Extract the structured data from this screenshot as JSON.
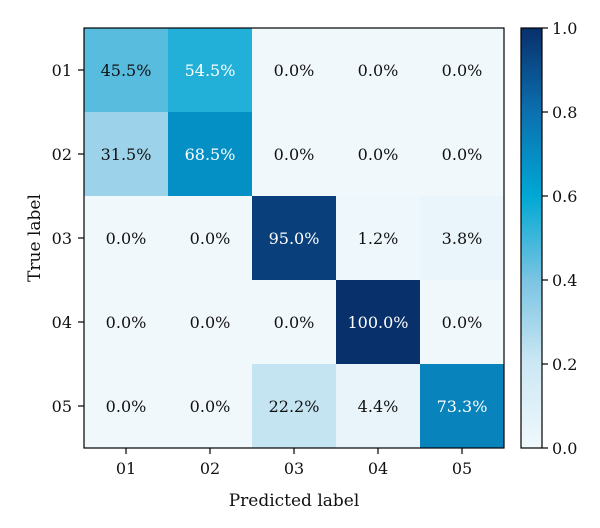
{
  "chart_data": {
    "type": "heatmap",
    "title": "",
    "xlabel": "Predicted label",
    "ylabel": "True label",
    "x_categories": [
      "01",
      "02",
      "03",
      "04",
      "05"
    ],
    "y_categories": [
      "01",
      "02",
      "03",
      "04",
      "05"
    ],
    "values": [
      [
        0.455,
        0.545,
        0.0,
        0.0,
        0.0
      ],
      [
        0.315,
        0.685,
        0.0,
        0.0,
        0.0
      ],
      [
        0.0,
        0.0,
        0.95,
        0.012,
        0.038
      ],
      [
        0.0,
        0.0,
        0.0,
        1.0,
        0.0
      ],
      [
        0.0,
        0.0,
        0.222,
        0.044,
        0.733
      ]
    ],
    "cell_labels": [
      [
        "45.5%",
        "54.5%",
        "0.0%",
        "0.0%",
        "0.0%"
      ],
      [
        "31.5%",
        "68.5%",
        "0.0%",
        "0.0%",
        "0.0%"
      ],
      [
        "0.0%",
        "0.0%",
        "95.0%",
        "1.2%",
        "3.8%"
      ],
      [
        "0.0%",
        "0.0%",
        "0.0%",
        "100.0%",
        "0.0%"
      ],
      [
        "0.0%",
        "0.0%",
        "22.2%",
        "4.4%",
        "73.3%"
      ]
    ],
    "colorbar": {
      "range": [
        0.0,
        1.0
      ],
      "ticks": [
        "0.0",
        "0.2",
        "0.4",
        "0.6",
        "0.8",
        "1.0"
      ]
    },
    "colormap": "Blues-like",
    "grid": false
  }
}
